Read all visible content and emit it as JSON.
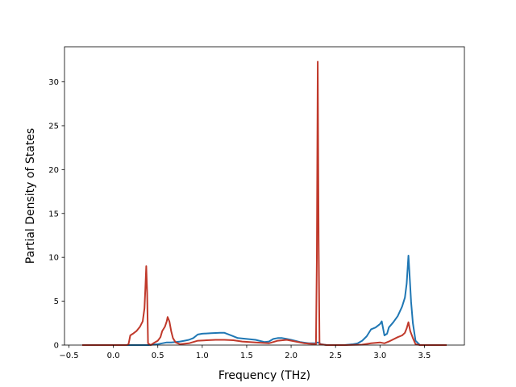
{
  "chart_data": {
    "type": "line",
    "title": "",
    "xlabel": "Frequency (THz)",
    "ylabel": "Partial Density of States",
    "xlim": [
      -0.55,
      3.95
    ],
    "ylim": [
      0,
      34
    ],
    "grid": false,
    "legend": "none",
    "x_ticks": [
      -0.5,
      0.0,
      0.5,
      1.0,
      1.5,
      2.0,
      2.5,
      3.0,
      3.5
    ],
    "x_tick_labels": [
      "−0.5",
      "0.0",
      "0.5",
      "1.0",
      "1.5",
      "2.0",
      "2.5",
      "3.0",
      "3.5"
    ],
    "y_ticks": [
      0,
      5,
      10,
      15,
      20,
      25,
      30
    ],
    "y_tick_labels": [
      "0",
      "5",
      "10",
      "15",
      "20",
      "25",
      "30"
    ],
    "series": [
      {
        "color": "#1f77b4",
        "points": [
          [
            -0.35,
            0
          ],
          [
            0.0,
            0
          ],
          [
            0.2,
            0
          ],
          [
            0.4,
            0.0
          ],
          [
            0.5,
            0.1
          ],
          [
            0.55,
            0.2
          ],
          [
            0.6,
            0.3
          ],
          [
            0.65,
            0.3
          ],
          [
            0.7,
            0.35
          ],
          [
            0.75,
            0.4
          ],
          [
            0.8,
            0.5
          ],
          [
            0.85,
            0.6
          ],
          [
            0.9,
            0.8
          ],
          [
            0.95,
            1.2
          ],
          [
            1.0,
            1.3
          ],
          [
            1.1,
            1.35
          ],
          [
            1.2,
            1.4
          ],
          [
            1.25,
            1.4
          ],
          [
            1.3,
            1.2
          ],
          [
            1.35,
            1.0
          ],
          [
            1.4,
            0.8
          ],
          [
            1.5,
            0.7
          ],
          [
            1.6,
            0.6
          ],
          [
            1.7,
            0.35
          ],
          [
            1.75,
            0.4
          ],
          [
            1.8,
            0.7
          ],
          [
            1.85,
            0.8
          ],
          [
            1.9,
            0.8
          ],
          [
            1.95,
            0.7
          ],
          [
            2.0,
            0.6
          ],
          [
            2.1,
            0.35
          ],
          [
            2.2,
            0.2
          ],
          [
            2.27,
            0.2
          ],
          [
            2.3,
            0.3
          ],
          [
            2.34,
            0.1
          ],
          [
            2.4,
            0.0
          ],
          [
            2.6,
            0.0
          ],
          [
            2.7,
            0.1
          ],
          [
            2.75,
            0.2
          ],
          [
            2.8,
            0.5
          ],
          [
            2.85,
            1.0
          ],
          [
            2.9,
            1.8
          ],
          [
            2.95,
            2.0
          ],
          [
            3.0,
            2.4
          ],
          [
            3.02,
            2.7
          ],
          [
            3.05,
            1.1
          ],
          [
            3.08,
            1.3
          ],
          [
            3.1,
            2.0
          ],
          [
            3.15,
            2.6
          ],
          [
            3.2,
            3.3
          ],
          [
            3.25,
            4.4
          ],
          [
            3.28,
            5.4
          ],
          [
            3.3,
            7.0
          ],
          [
            3.32,
            10.2
          ],
          [
            3.33,
            8.5
          ],
          [
            3.35,
            4.9
          ],
          [
            3.37,
            2.5
          ],
          [
            3.4,
            0.5
          ],
          [
            3.45,
            0.0
          ],
          [
            3.6,
            0.0
          ],
          [
            3.75,
            0.0
          ]
        ]
      },
      {
        "color": "#c0392b",
        "points": [
          [
            -0.35,
            0
          ],
          [
            0.0,
            0
          ],
          [
            0.15,
            0
          ],
          [
            0.17,
            0.1
          ],
          [
            0.19,
            1.1
          ],
          [
            0.22,
            1.3
          ],
          [
            0.26,
            1.6
          ],
          [
            0.3,
            2.1
          ],
          [
            0.33,
            2.7
          ],
          [
            0.35,
            4.2
          ],
          [
            0.36,
            6.5
          ],
          [
            0.37,
            9.0
          ],
          [
            0.38,
            6.0
          ],
          [
            0.39,
            0.2
          ],
          [
            0.42,
            0.0
          ],
          [
            0.45,
            0.2
          ],
          [
            0.5,
            0.5
          ],
          [
            0.53,
            0.9
          ],
          [
            0.55,
            1.6
          ],
          [
            0.58,
            2.1
          ],
          [
            0.6,
            2.7
          ],
          [
            0.61,
            3.2
          ],
          [
            0.63,
            2.7
          ],
          [
            0.65,
            1.6
          ],
          [
            0.67,
            0.8
          ],
          [
            0.7,
            0.3
          ],
          [
            0.75,
            0.1
          ],
          [
            0.85,
            0.2
          ],
          [
            0.95,
            0.5
          ],
          [
            1.05,
            0.55
          ],
          [
            1.15,
            0.6
          ],
          [
            1.25,
            0.6
          ],
          [
            1.35,
            0.55
          ],
          [
            1.45,
            0.4
          ],
          [
            1.6,
            0.3
          ],
          [
            1.75,
            0.2
          ],
          [
            1.85,
            0.5
          ],
          [
            1.95,
            0.6
          ],
          [
            2.05,
            0.4
          ],
          [
            2.15,
            0.2
          ],
          [
            2.28,
            0.1
          ],
          [
            2.29,
            10.0
          ],
          [
            2.3,
            32.3
          ],
          [
            2.31,
            12.0
          ],
          [
            2.32,
            0.1
          ],
          [
            2.4,
            0.0
          ],
          [
            2.6,
            0.0
          ],
          [
            2.8,
            0.05
          ],
          [
            2.9,
            0.2
          ],
          [
            3.0,
            0.3
          ],
          [
            3.05,
            0.2
          ],
          [
            3.1,
            0.4
          ],
          [
            3.2,
            0.9
          ],
          [
            3.25,
            1.1
          ],
          [
            3.28,
            1.4
          ],
          [
            3.3,
            1.9
          ],
          [
            3.32,
            2.6
          ],
          [
            3.34,
            1.6
          ],
          [
            3.37,
            0.8
          ],
          [
            3.4,
            0.1
          ],
          [
            3.45,
            0.0
          ],
          [
            3.6,
            0.0
          ],
          [
            3.75,
            0.0
          ]
        ]
      }
    ]
  }
}
